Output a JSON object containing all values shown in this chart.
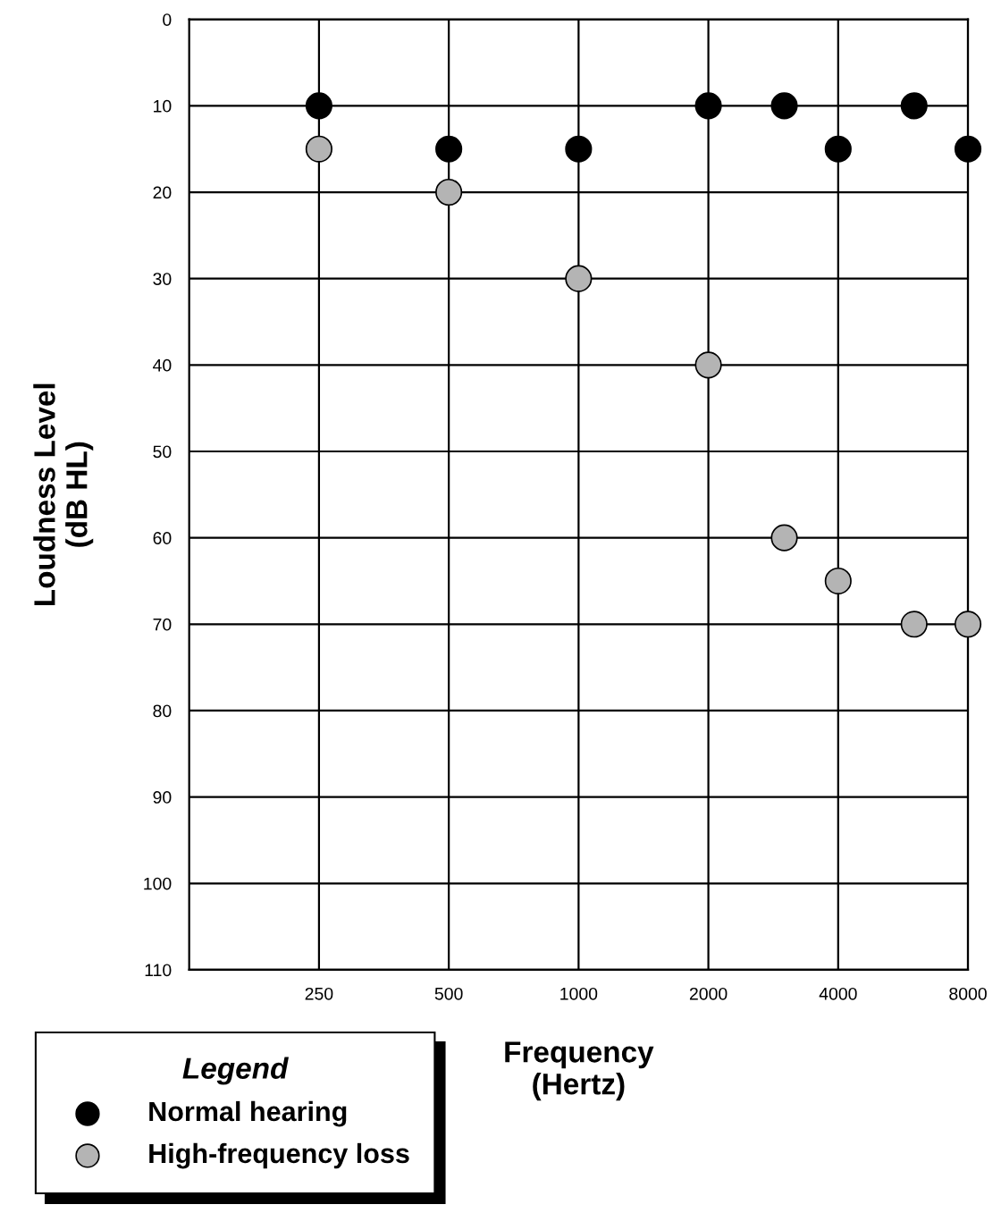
{
  "chart_data": {
    "type": "scatter",
    "xlabel": "Frequency\n(Hertz)",
    "ylabel": "Loudness Level\n(dB HL)",
    "legend_title": "Legend",
    "x": [
      250,
      500,
      1000,
      2000,
      3000,
      4000,
      6000,
      8000
    ],
    "series": [
      {
        "name": "Normal hearing",
        "color": "#000000",
        "values": [
          10,
          15,
          15,
          10,
          10,
          15,
          10,
          15
        ]
      },
      {
        "name": "High-frequency loss",
        "color": "#b4b4b4",
        "values": [
          15,
          20,
          30,
          40,
          60,
          65,
          70,
          70
        ]
      }
    ],
    "log": "x",
    "xlim": [
      125,
      8000
    ],
    "xticks": [
      250,
      500,
      1000,
      2000,
      4000,
      8000
    ],
    "ylim": [
      110,
      0
    ],
    "yticks": [
      0,
      10,
      20,
      30,
      40,
      50,
      60,
      70,
      80,
      90,
      100,
      110
    ],
    "grid": true,
    "legend": "bottom left",
    "marker": "circle"
  }
}
